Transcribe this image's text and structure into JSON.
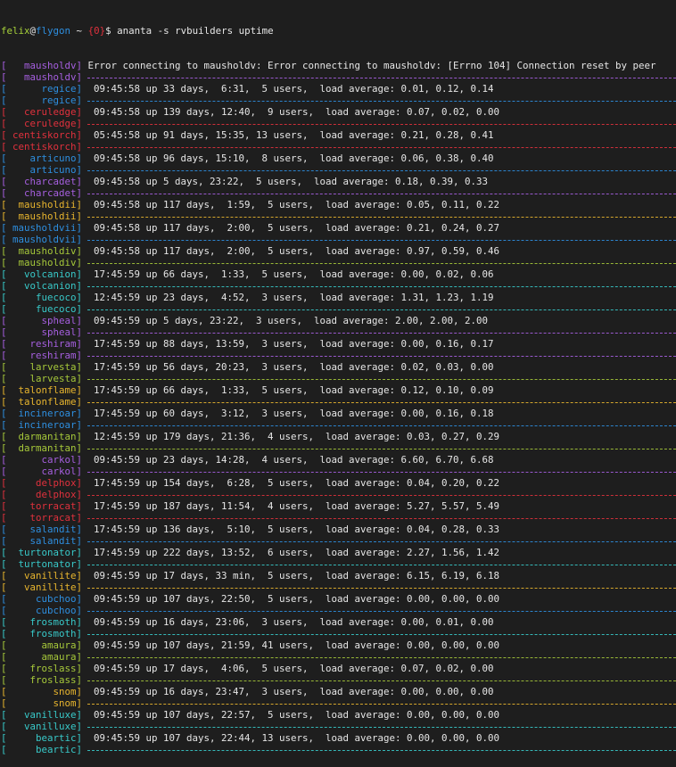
{
  "prompt": {
    "user": "felix",
    "at": "@",
    "host": "flygon",
    "cwd": " ~ ",
    "status": "{0}",
    "symbol": "$ ",
    "command": "ananta -s rvbuilders uptime"
  },
  "colors": {
    "purple": "#a65fe0",
    "blue": "#2e8fe0",
    "red": "#e0313d",
    "yellow": "#e8b52e",
    "green": "#a6c83a",
    "cyan": "#38c9c9",
    "background": "#1e1e1e",
    "text": "#e6e6e6"
  },
  "hosts": [
    {
      "name": "mausholdv",
      "color": "purple",
      "output": "Error connecting to mausholdv: Error connecting to mausholdv: [Errno 104] Connection reset by peer",
      "error": true
    },
    {
      "name": "regice",
      "color": "blue",
      "output": "09:45:58 up 33 days,  6:31,  5 users,  load average: 0.01, 0.12, 0.14"
    },
    {
      "name": "ceruledge",
      "color": "red",
      "output": "09:45:58 up 139 days, 12:40,  9 users,  load average: 0.07, 0.02, 0.00"
    },
    {
      "name": "centiskorch",
      "color": "red",
      "output": "05:45:58 up 91 days, 15:35, 13 users,  load average: 0.21, 0.28, 0.41"
    },
    {
      "name": "articuno",
      "color": "blue",
      "output": "09:45:58 up 96 days, 15:10,  8 users,  load average: 0.06, 0.38, 0.40"
    },
    {
      "name": "charcadet",
      "color": "purple",
      "output": "09:45:58 up 5 days, 23:22,  5 users,  load average: 0.18, 0.39, 0.33"
    },
    {
      "name": "mausholdii",
      "color": "yellow",
      "output": "09:45:58 up 117 days,  1:59,  5 users,  load average: 0.05, 0.11, 0.22"
    },
    {
      "name": "mausholdvii",
      "color": "blue",
      "output": "09:45:58 up 117 days,  2:00,  5 users,  load average: 0.21, 0.24, 0.27"
    },
    {
      "name": "mausholdiv",
      "color": "green",
      "output": "09:45:58 up 117 days,  2:00,  5 users,  load average: 0.97, 0.59, 0.46"
    },
    {
      "name": "volcanion",
      "color": "cyan",
      "output": "17:45:59 up 66 days,  1:33,  5 users,  load average: 0.00, 0.02, 0.06"
    },
    {
      "name": "fuecoco",
      "color": "cyan",
      "output": "12:45:59 up 23 days,  4:52,  3 users,  load average: 1.31, 1.23, 1.19"
    },
    {
      "name": "spheal",
      "color": "purple",
      "output": "09:45:59 up 5 days, 23:22,  3 users,  load average: 2.00, 2.00, 2.00"
    },
    {
      "name": "reshiram",
      "color": "purple",
      "output": "17:45:59 up 88 days, 13:59,  3 users,  load average: 0.00, 0.16, 0.17"
    },
    {
      "name": "larvesta",
      "color": "green",
      "output": "17:45:59 up 56 days, 20:23,  3 users,  load average: 0.02, 0.03, 0.00"
    },
    {
      "name": "talonflame",
      "color": "yellow",
      "output": "17:45:59 up 66 days,  1:33,  5 users,  load average: 0.12, 0.10, 0.09"
    },
    {
      "name": "incineroar",
      "color": "blue",
      "output": "17:45:59 up 60 days,  3:12,  3 users,  load average: 0.00, 0.16, 0.18"
    },
    {
      "name": "darmanitan",
      "color": "green",
      "output": "12:45:59 up 179 days, 21:36,  4 users,  load average: 0.03, 0.27, 0.29"
    },
    {
      "name": "carkol",
      "color": "purple",
      "output": "09:45:59 up 23 days, 14:28,  4 users,  load average: 6.60, 6.70, 6.68"
    },
    {
      "name": "delphox",
      "color": "red",
      "output": "17:45:59 up 154 days,  6:28,  5 users,  load average: 0.04, 0.20, 0.22"
    },
    {
      "name": "torracat",
      "color": "red",
      "output": "17:45:59 up 187 days, 11:54,  4 users,  load average: 5.27, 5.57, 5.49"
    },
    {
      "name": "salandit",
      "color": "blue",
      "output": "17:45:59 up 136 days,  5:10,  5 users,  load average: 0.04, 0.28, 0.33"
    },
    {
      "name": "turtonator",
      "color": "cyan",
      "output": "17:45:59 up 222 days, 13:52,  6 users,  load average: 2.27, 1.56, 1.42"
    },
    {
      "name": "vanillite",
      "color": "yellow",
      "output": "09:45:59 up 17 days, 33 min,  5 users,  load average: 6.15, 6.19, 6.18"
    },
    {
      "name": "cubchoo",
      "color": "blue",
      "output": "09:45:59 up 107 days, 22:50,  5 users,  load average: 0.00, 0.00, 0.00"
    },
    {
      "name": "frosmoth",
      "color": "cyan",
      "output": "09:45:59 up 16 days, 23:06,  3 users,  load average: 0.00, 0.01, 0.00"
    },
    {
      "name": "amaura",
      "color": "green",
      "output": "09:45:59 up 107 days, 21:59, 41 users,  load average: 0.00, 0.00, 0.00"
    },
    {
      "name": "froslass",
      "color": "green",
      "output": "09:45:59 up 17 days,  4:06,  5 users,  load average: 0.07, 0.02, 0.00"
    },
    {
      "name": "snom",
      "color": "yellow",
      "output": "09:45:59 up 16 days, 23:47,  3 users,  load average: 0.00, 0.00, 0.00"
    },
    {
      "name": "vanilluxe",
      "color": "cyan",
      "output": "09:45:59 up 107 days, 22:57,  5 users,  load average: 0.00, 0.00, 0.00"
    },
    {
      "name": "beartic",
      "color": "cyan",
      "output": "09:45:59 up 107 days, 22:44, 13 users,  load average: 0.00, 0.00, 0.00"
    }
  ]
}
